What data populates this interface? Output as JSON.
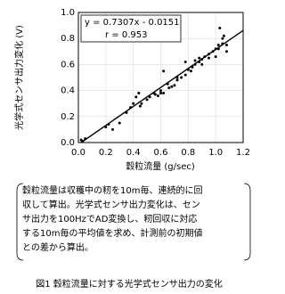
{
  "chart_data": {
    "type": "scatter",
    "y_label": "光学式センサ出力変化 (V)",
    "x_label": "穀粒流量 (g/sec)",
    "annotation_lines": [
      "y = 0.7307x - 0.0151",
      "r = 0.953"
    ],
    "xlim": [
      0,
      1.2
    ],
    "ylim": [
      0,
      1.0
    ],
    "xticks": [
      {
        "value": 0,
        "label": "0.0"
      },
      {
        "value": 0.2,
        "label": "0.2"
      },
      {
        "value": 0.4,
        "label": "0.4"
      },
      {
        "value": 0.6,
        "label": "0.6"
      },
      {
        "value": 0.8,
        "label": "0.8"
      },
      {
        "value": 1.0,
        "label": "1.0"
      },
      {
        "value": 1.2,
        "label": "1.2"
      }
    ],
    "yticks": [
      {
        "value": 0,
        "label": "0.0"
      },
      {
        "value": 0.2,
        "label": "0.2"
      },
      {
        "value": 0.4,
        "label": "0.4"
      },
      {
        "value": 0.6,
        "label": "0.6"
      },
      {
        "value": 0.8,
        "label": "0.8"
      },
      {
        "value": 1.0,
        "label": "1.0"
      }
    ],
    "grid": true,
    "series": [
      {
        "kind": "points",
        "color": "#000000",
        "x": [
          0.02,
          0.03,
          0.05,
          0.2,
          0.22,
          0.25,
          0.3,
          0.35,
          0.38,
          0.4,
          0.42,
          0.44,
          0.45,
          0.46,
          0.5,
          0.52,
          0.55,
          0.56,
          0.58,
          0.6,
          0.6,
          0.62,
          0.62,
          0.65,
          0.66,
          0.68,
          0.7,
          0.72,
          0.72,
          0.75,
          0.78,
          0.78,
          0.8,
          0.82,
          0.83,
          0.85,
          0.85,
          0.88,
          0.88,
          0.9,
          0.9,
          0.92,
          0.95,
          0.95,
          0.98,
          1.0,
          1.0,
          1.02,
          1.02,
          1.03,
          1.05,
          1.05,
          1.06,
          1.08,
          1.08
        ],
        "values": [
          0.02,
          0.01,
          0.03,
          0.12,
          0.14,
          0.1,
          0.15,
          0.23,
          0.27,
          0.3,
          0.35,
          0.38,
          0.28,
          0.3,
          0.33,
          0.35,
          0.38,
          0.37,
          0.36,
          0.38,
          0.4,
          0.38,
          0.55,
          0.45,
          0.42,
          0.43,
          0.44,
          0.48,
          0.5,
          0.5,
          0.52,
          0.62,
          0.56,
          0.55,
          0.58,
          0.6,
          0.63,
          0.62,
          0.65,
          0.6,
          0.64,
          0.66,
          0.65,
          0.68,
          0.7,
          0.66,
          0.72,
          0.75,
          0.72,
          0.88,
          0.8,
          0.76,
          0.82,
          0.7,
          0.75
        ]
      },
      {
        "kind": "line",
        "color": "#000000",
        "x": [
          0.02,
          1.2
        ],
        "values": [
          0,
          0.862
        ]
      }
    ]
  },
  "note_lines": [
    "穀粒流量は収穫中の籾を10m毎、連続的に回",
    "収して算出。光学式センサ出力変化は、セン",
    "サ出力を100HzでAD変換し、籾回収に対応",
    "する10m毎の平均値を求め、計測前の初期値",
    "との差から算出。"
  ],
  "caption": "図1 穀粒流量に対する光学式センサ出力の変化"
}
